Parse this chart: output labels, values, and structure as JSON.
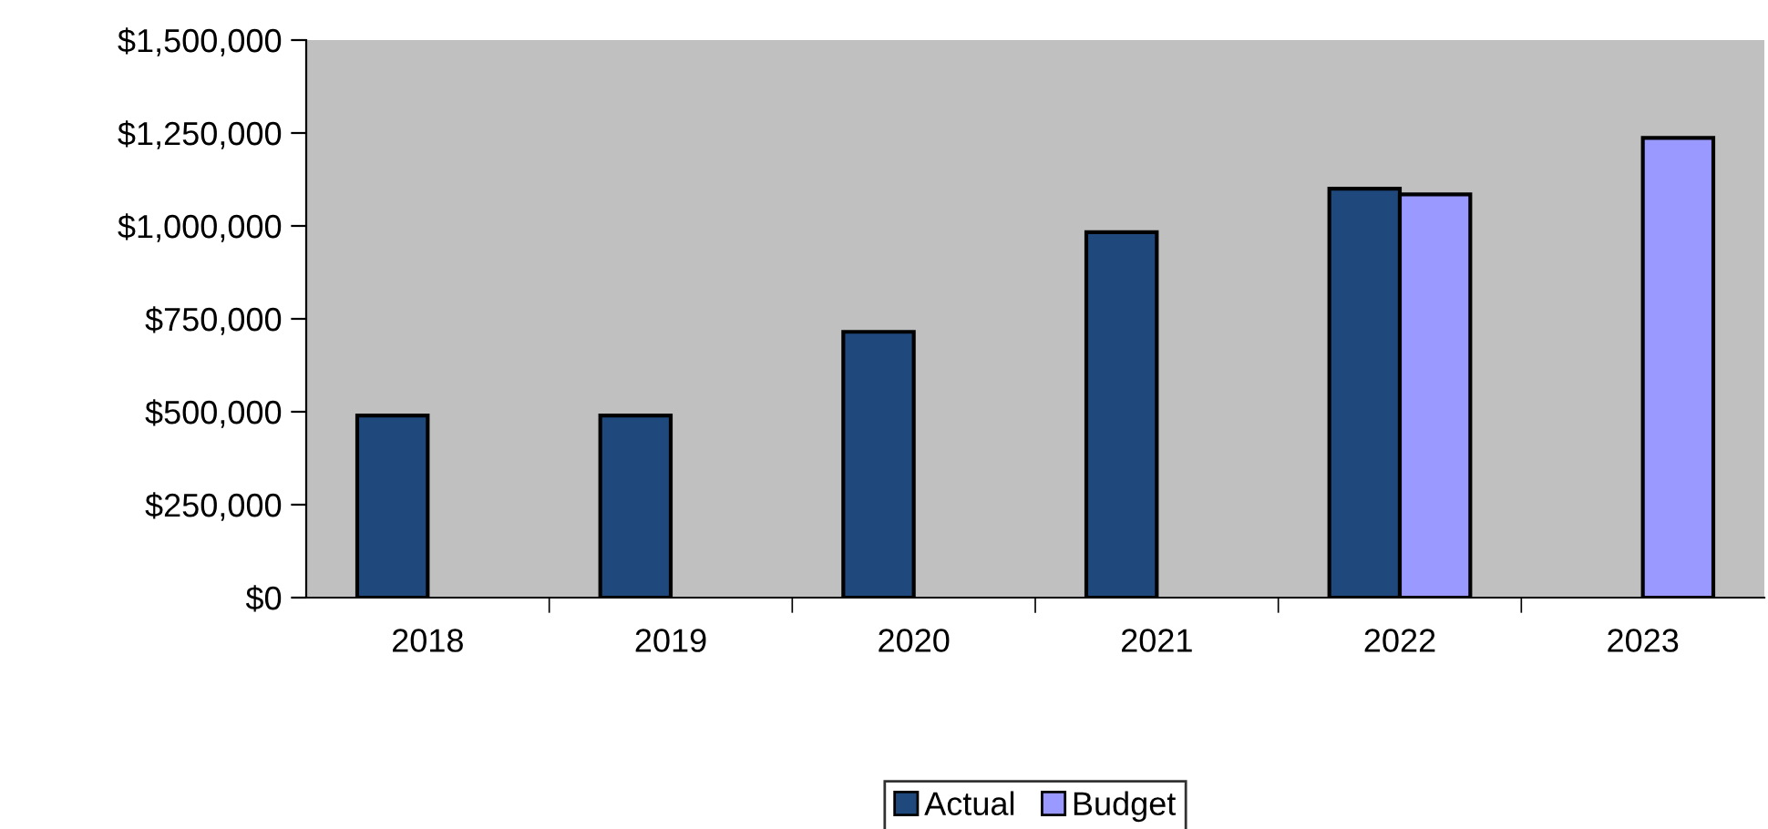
{
  "chart_data": {
    "type": "bar",
    "categories": [
      "2018",
      "2019",
      "2020",
      "2021",
      "2022",
      "2023"
    ],
    "series": [
      {
        "name": "Actual",
        "color": "#1f497d",
        "values": [
          490000,
          490000,
          715000,
          983000,
          1100000,
          null
        ]
      },
      {
        "name": "Budget",
        "color": "#9999ff",
        "values": [
          null,
          null,
          null,
          null,
          1085000,
          1237000
        ]
      }
    ],
    "ylim": [
      0,
      1500000
    ],
    "yticks": [
      {
        "value": 0,
        "label": "$0"
      },
      {
        "value": 250000,
        "label": "$250,000"
      },
      {
        "value": 500000,
        "label": "$500,000"
      },
      {
        "value": 750000,
        "label": "$750,000"
      },
      {
        "value": 1000000,
        "label": "$1,000,000"
      },
      {
        "value": 1250000,
        "label": "$1,250,000"
      },
      {
        "value": 1500000,
        "label": "$1,500,000"
      }
    ],
    "grid": false,
    "legend": "bottom"
  }
}
